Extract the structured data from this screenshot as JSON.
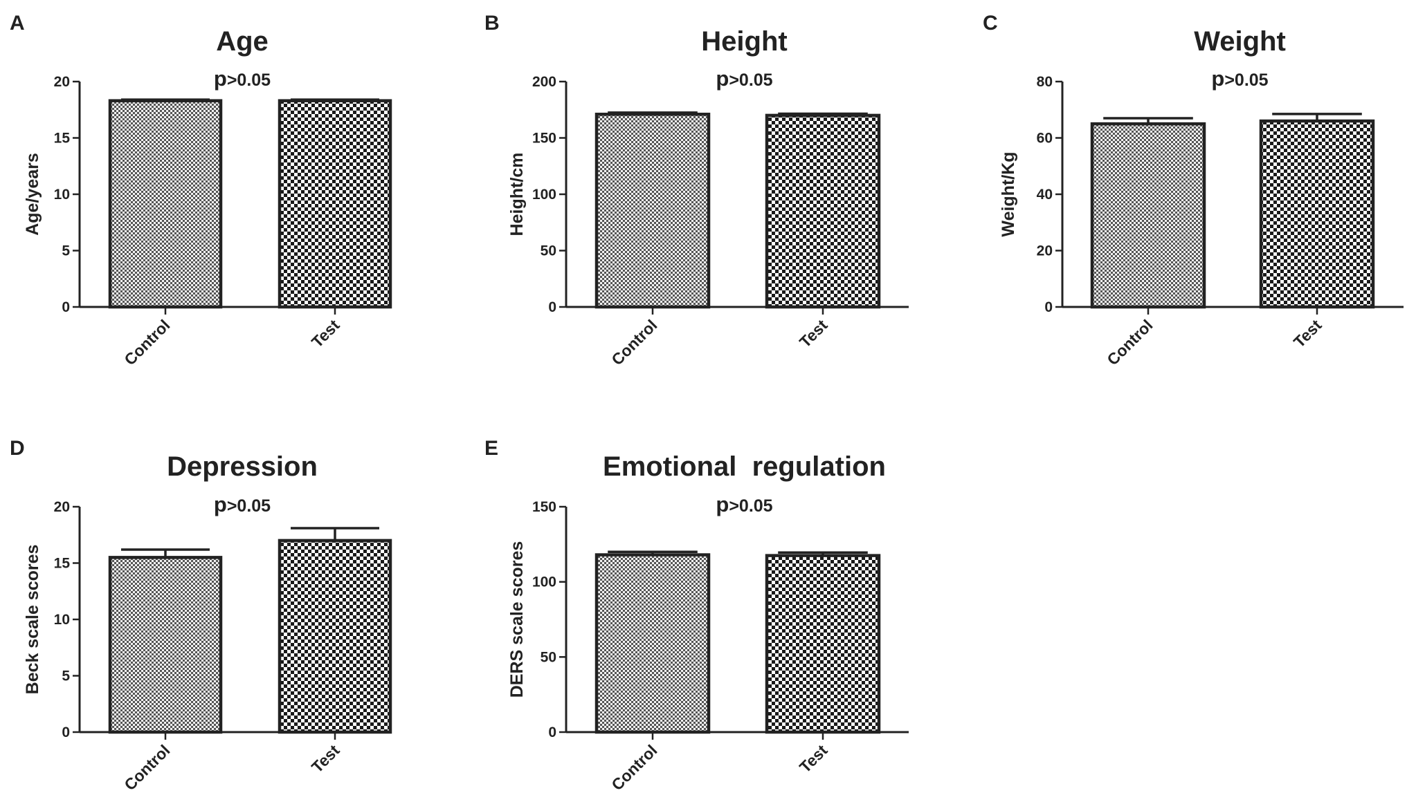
{
  "chart_data": [
    {
      "type": "bar",
      "panel": "A",
      "title": "Age",
      "ylabel": "Age/years",
      "categories": [
        "Control",
        "Test"
      ],
      "values": [
        18.3,
        18.3
      ],
      "errors": [
        0.1,
        0.1
      ],
      "ylim": [
        0,
        20
      ],
      "yticks": [
        0,
        5,
        10,
        15,
        20
      ],
      "annotation": {
        "p": "p",
        "rest": ">0.05"
      }
    },
    {
      "type": "bar",
      "panel": "B",
      "title": "Height",
      "ylabel": "Height/cm",
      "categories": [
        "Control",
        "Test"
      ],
      "values": [
        171,
        170
      ],
      "errors": [
        1.5,
        1.5
      ],
      "ylim": [
        0,
        200
      ],
      "yticks": [
        0,
        50,
        100,
        150,
        200
      ],
      "annotation": {
        "p": "p",
        "rest": ">0.05"
      }
    },
    {
      "type": "bar",
      "panel": "C",
      "title": "Weight",
      "ylabel": "Weight/Kg",
      "categories": [
        "Control",
        "Test"
      ],
      "values": [
        65,
        66
      ],
      "errors": [
        2,
        2.5
      ],
      "ylim": [
        0,
        80
      ],
      "yticks": [
        0,
        20,
        40,
        60,
        80
      ],
      "annotation": {
        "p": "p",
        "rest": ">0.05"
      }
    },
    {
      "type": "bar",
      "panel": "D",
      "title": "Depression",
      "ylabel": "Beck scale scores",
      "categories": [
        "Control",
        "Test"
      ],
      "values": [
        15.5,
        17
      ],
      "errors": [
        0.7,
        1.1
      ],
      "ylim": [
        0,
        20
      ],
      "yticks": [
        0,
        5,
        10,
        15,
        20
      ],
      "annotation": {
        "p": "p",
        "rest": ">0.05"
      }
    },
    {
      "type": "bar",
      "panel": "E",
      "title": "Emotional  regulation",
      "ylabel": "DERS scale scores",
      "categories": [
        "Control",
        "Test"
      ],
      "values": [
        118,
        117.5
      ],
      "errors": [
        2,
        2
      ],
      "ylim": [
        0,
        150
      ],
      "yticks": [
        0,
        50,
        100,
        150
      ],
      "annotation": {
        "p": "p",
        "rest": ">0.05"
      }
    }
  ]
}
